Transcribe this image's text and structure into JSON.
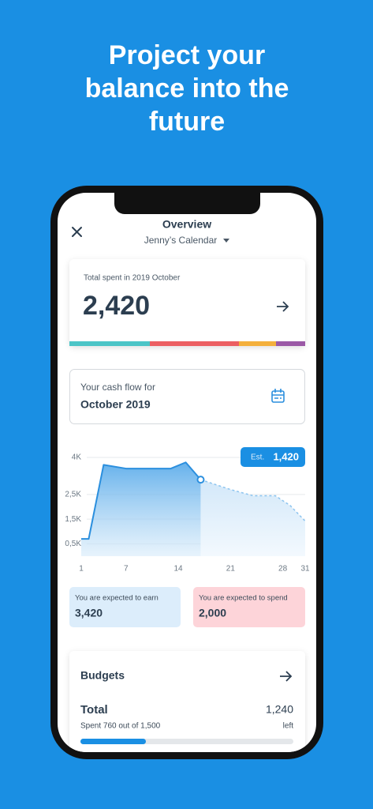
{
  "headline": {
    "lines": [
      "Project your",
      "balance into the",
      "future"
    ]
  },
  "app_header": {
    "title": "Overview",
    "calendar": "Jenny’s Calendar"
  },
  "summary_card": {
    "caption": "Total spent in 2019 October",
    "amount": "2,420"
  },
  "cash_flow_picker": {
    "caption": "Your cash flow for",
    "period": "October 2019"
  },
  "chart_data": {
    "type": "line",
    "x": [
      1,
      2,
      4,
      7,
      13,
      15,
      17,
      21,
      24,
      27,
      29,
      31
    ],
    "series": [
      {
        "color": "#2b8fde",
        "values": [
          700,
          700,
          3700,
          3550,
          3550,
          3800,
          3100,
          null,
          null,
          null,
          null,
          null
        ]
      },
      {
        "color": "#8cc4ef",
        "values": [
          null,
          null,
          null,
          null,
          null,
          null,
          3100,
          2700,
          2450,
          2450,
          2050,
          1420
        ]
      }
    ],
    "xlim": [
      1,
      31
    ],
    "xticks": [
      1,
      7,
      14,
      21,
      28,
      31
    ],
    "ylim": [
      0,
      4400
    ],
    "yticks": [
      {
        "value": 500,
        "label": "0,5K"
      },
      {
        "value": 1500,
        "label": "1,5K"
      },
      {
        "value": 2500,
        "label": "2,5K"
      },
      {
        "value": 4000,
        "label": "4K"
      }
    ],
    "grid": true,
    "tooltip": {
      "label": "Est.",
      "value": "1,420"
    }
  },
  "expectations": {
    "earn": {
      "caption": "You are expected to earn",
      "amount": "3,420"
    },
    "spend": {
      "caption": "You are expected to spend",
      "amount": "2,000"
    }
  },
  "budgets": {
    "title": "Budgets",
    "total_label": "Total",
    "total_amount": "1,240",
    "spent_text": "Spent 760 out of 1,500",
    "left_text": "left"
  }
}
